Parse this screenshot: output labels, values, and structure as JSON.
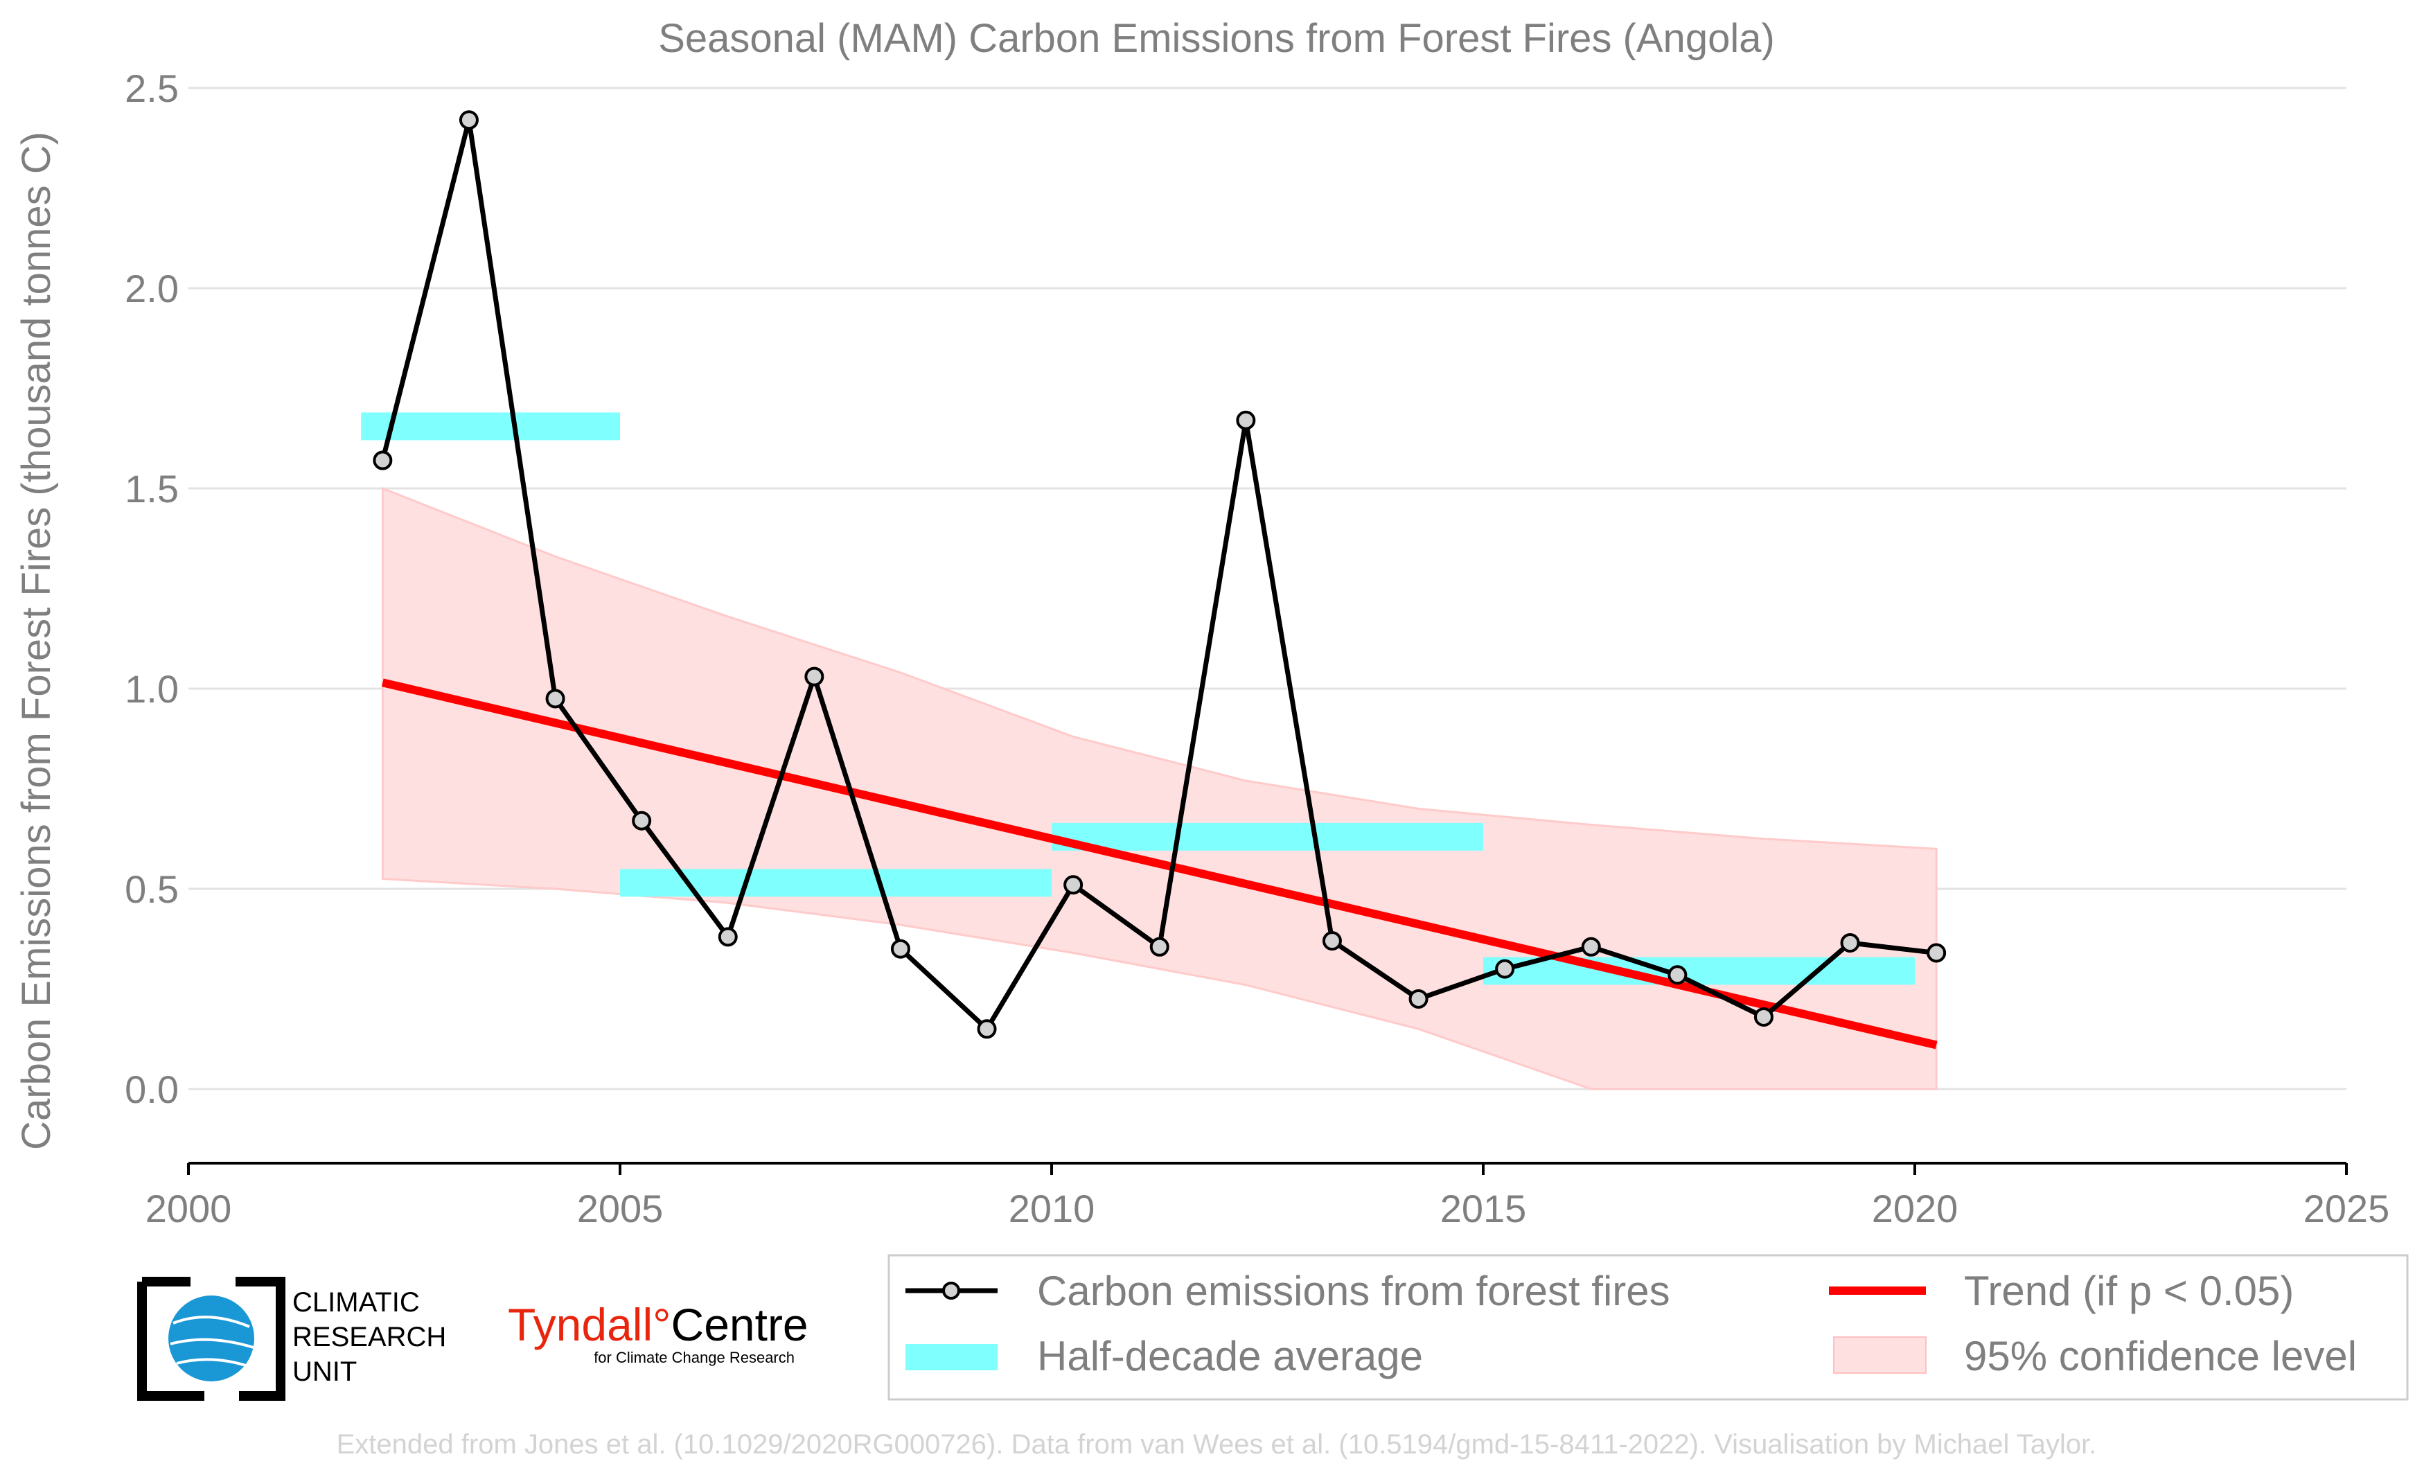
{
  "chart_data": {
    "type": "line",
    "title": "Seasonal (MAM) Carbon Emissions from Forest Fires (Angola)",
    "xlabel": "",
    "ylabel": "Carbon Emissions from Forest Fires (thousand tonnes C)",
    "xlim": [
      2000,
      2025
    ],
    "ylim": [
      -0.18,
      2.55
    ],
    "xticks": [
      "2000",
      "2005",
      "2010",
      "2015",
      "2020",
      "2025"
    ],
    "yticks": [
      "0.0",
      "0.5",
      "1.0",
      "1.5",
      "2.0",
      "2.5"
    ],
    "grid": true,
    "legend_position": "bottom",
    "series": [
      {
        "name": "Carbon emissions from forest fires",
        "color": "#000000",
        "x": [
          2002.25,
          2003.25,
          2004.25,
          2005.25,
          2006.25,
          2007.25,
          2008.25,
          2009.25,
          2010.25,
          2011.25,
          2012.25,
          2013.25,
          2014.25,
          2015.25,
          2016.25,
          2017.25,
          2018.25,
          2019.25,
          2020.25
        ],
        "y": [
          1.57,
          2.42,
          0.975,
          0.67,
          0.38,
          1.03,
          0.35,
          0.15,
          0.51,
          0.355,
          1.67,
          0.37,
          0.225,
          0.3,
          0.355,
          0.285,
          0.18,
          0.365,
          0.34
        ]
      },
      {
        "name": "Half-decade average",
        "color": "#80ffff",
        "segments": [
          {
            "x0": 2002,
            "x1": 2005,
            "y": 1.655
          },
          {
            "x0": 2005,
            "x1": 2010,
            "y": 0.515
          },
          {
            "x0": 2010,
            "x1": 2015,
            "y": 0.63
          },
          {
            "x0": 2015,
            "x1": 2020,
            "y": 0.295
          }
        ]
      },
      {
        "name": "Trend (if p < 0.05)",
        "color": "#ff0000",
        "x": [
          2002.25,
          2020.25
        ],
        "y": [
          1.015,
          0.11
        ]
      },
      {
        "name": "95% confidence level",
        "color": "#ffe0e0",
        "x": [
          2002.25,
          2004.25,
          2006.25,
          2008.25,
          2010.25,
          2012.25,
          2014.25,
          2016.25,
          2018.25,
          2020.25
        ],
        "upper": [
          1.5,
          1.33,
          1.18,
          1.04,
          0.88,
          0.77,
          0.7,
          0.66,
          0.625,
          0.6
        ],
        "lower": [
          0.525,
          0.5,
          0.465,
          0.41,
          0.34,
          0.26,
          0.15,
          0.0,
          0.0,
          0.0
        ]
      }
    ]
  },
  "legend": {
    "items": [
      "Carbon emissions from forest fires",
      "Trend (if p < 0.05)",
      "Half-decade average",
      "95% confidence level"
    ]
  },
  "logos": {
    "cru_lines": [
      "CLIMATIC",
      "RESEARCH",
      "UNIT"
    ],
    "tyndall_main_1": "Tyndall",
    "tyndall_degree": "°",
    "tyndall_main_2": "Centre",
    "tyndall_sub": "for Climate Change Research"
  },
  "footer": "Extended from Jones et al. (10.1029/2020RG000726). Data from van Wees et al. (10.5194/gmd-15-8411-2022). Visualisation by Michael Taylor."
}
